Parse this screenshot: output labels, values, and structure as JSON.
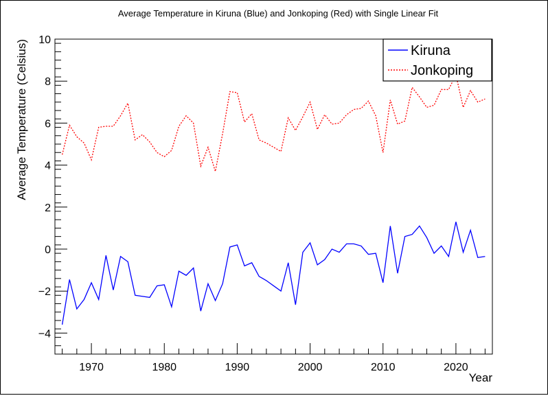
{
  "chart_data": {
    "type": "line",
    "title": "Average Temperature in Kiruna (Blue) and Jonkoping (Red) with Single Linear Fit",
    "xlabel": "Year",
    "ylabel": "Average Temperature (Celsius)",
    "xlim": [
      1965,
      2025
    ],
    "ylim": [
      -5,
      10
    ],
    "x_ticks": [
      1970,
      1980,
      1990,
      2000,
      2010,
      2020
    ],
    "y_ticks": [
      -4,
      -2,
      0,
      2,
      4,
      6,
      8,
      10
    ],
    "grid": false,
    "legend_position": "top-right",
    "x": [
      1966,
      1967,
      1968,
      1969,
      1970,
      1971,
      1972,
      1973,
      1974,
      1975,
      1976,
      1977,
      1978,
      1979,
      1980,
      1981,
      1982,
      1983,
      1984,
      1985,
      1986,
      1987,
      1988,
      1989,
      1990,
      1991,
      1992,
      1993,
      1994,
      1995,
      1996,
      1997,
      1998,
      1999,
      2000,
      2001,
      2002,
      2003,
      2004,
      2005,
      2006,
      2007,
      2008,
      2009,
      2010,
      2011,
      2012,
      2013,
      2014,
      2015,
      2016,
      2017,
      2018,
      2019,
      2020,
      2021,
      2022,
      2023,
      2024
    ],
    "series": [
      {
        "name": "Kiruna",
        "color": "#0000ff",
        "dash": "solid",
        "values": [
          -3.6,
          -1.45,
          -2.85,
          -2.4,
          -1.6,
          -2.4,
          -0.3,
          -1.95,
          -0.35,
          -0.6,
          -2.2,
          -2.25,
          -2.3,
          -1.75,
          -1.7,
          -2.75,
          -1.05,
          -1.25,
          -0.9,
          -2.95,
          -1.65,
          -2.45,
          -1.65,
          0.1,
          0.2,
          -0.8,
          -0.65,
          -1.3,
          -1.5,
          -1.75,
          -2.0,
          -0.65,
          -2.65,
          -0.15,
          0.3,
          -0.75,
          -0.5,
          0.0,
          -0.15,
          0.25,
          0.25,
          0.15,
          -0.25,
          -0.2,
          -1.6,
          1.1,
          -1.15,
          0.6,
          0.7,
          1.1,
          0.55,
          -0.2,
          0.15,
          -0.35,
          1.3,
          -0.15,
          0.9,
          -0.4,
          -0.35
        ]
      },
      {
        "name": "Jonkoping",
        "color": "#ff0000",
        "dash": "dotted",
        "values": [
          4.5,
          5.9,
          5.35,
          5.05,
          4.25,
          5.8,
          5.85,
          5.85,
          6.35,
          6.95,
          5.2,
          5.45,
          5.1,
          4.6,
          4.4,
          4.7,
          5.85,
          6.35,
          6.0,
          3.95,
          4.85,
          3.7,
          5.5,
          7.5,
          7.45,
          6.05,
          6.45,
          5.2,
          5.05,
          4.85,
          4.65,
          6.25,
          5.65,
          6.3,
          7.0,
          5.7,
          6.4,
          5.95,
          6.0,
          6.4,
          6.65,
          6.7,
          7.05,
          6.35,
          4.6,
          7.1,
          5.95,
          6.1,
          7.7,
          7.25,
          6.75,
          6.85,
          7.6,
          7.6,
          8.3,
          6.75,
          7.55,
          7.0,
          7.15
        ]
      }
    ]
  }
}
